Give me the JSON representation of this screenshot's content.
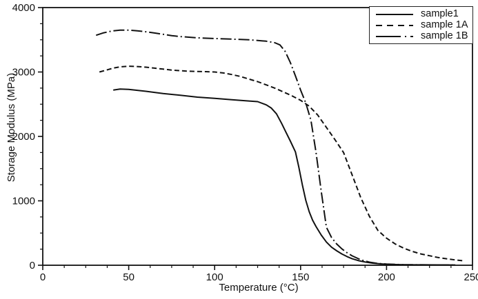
{
  "figure": {
    "background": "#ffffff",
    "line_color": "#111111"
  },
  "chart_data": {
    "type": "line",
    "title": "",
    "xlabel": "Temperature (°C)",
    "ylabel": "Storage Modulus (MPa)",
    "xlim": [
      0,
      250
    ],
    "ylim": [
      0,
      4000
    ],
    "x_major_ticks": [
      0,
      50,
      100,
      150,
      200,
      250
    ],
    "x_minor_step": 12.5,
    "y_major_ticks": [
      0,
      1000,
      2000,
      3000,
      4000
    ],
    "y_minor_step": 250,
    "grid": false,
    "frame": true,
    "legend_position": "top-right",
    "series": [
      {
        "name": "sample1",
        "line_style": "solid",
        "color": "#111111",
        "x": [
          41,
          45,
          50,
          55,
          60,
          70,
          80,
          90,
          100,
          110,
          120,
          125,
          130,
          133,
          136,
          139,
          141,
          144,
          147,
          149,
          151,
          153,
          155,
          157,
          159,
          162,
          165,
          168,
          171,
          174,
          177,
          180,
          184,
          188,
          192,
          196,
          200,
          210,
          220,
          230,
          240
        ],
        "y": [
          2720,
          2735,
          2730,
          2715,
          2700,
          2665,
          2640,
          2610,
          2590,
          2570,
          2550,
          2540,
          2490,
          2440,
          2350,
          2200,
          2090,
          1930,
          1760,
          1520,
          1250,
          1010,
          830,
          700,
          600,
          470,
          360,
          280,
          225,
          175,
          135,
          100,
          70,
          48,
          32,
          22,
          15,
          8,
          6,
          5,
          4
        ]
      },
      {
        "name": "sample 1A",
        "line_style": "dashed",
        "color": "#111111",
        "x": [
          33,
          37,
          41,
          45,
          50,
          55,
          60,
          65,
          70,
          75,
          80,
          85,
          90,
          95,
          100,
          105,
          110,
          115,
          120,
          125,
          130,
          135,
          140,
          145,
          150,
          155,
          160,
          165,
          170,
          175,
          180,
          185,
          190,
          195,
          200,
          205,
          210,
          215,
          220,
          225,
          230,
          235,
          240,
          245
        ],
        "y": [
          3000,
          3030,
          3060,
          3080,
          3090,
          3085,
          3075,
          3060,
          3045,
          3030,
          3020,
          3012,
          3008,
          3005,
          3000,
          2985,
          2960,
          2930,
          2890,
          2850,
          2800,
          2750,
          2690,
          2630,
          2560,
          2470,
          2330,
          2140,
          1950,
          1750,
          1400,
          1050,
          760,
          540,
          420,
          330,
          265,
          215,
          175,
          148,
          120,
          100,
          82,
          68
        ]
      },
      {
        "name": "sample 1B",
        "line_style": "dash-dot",
        "color": "#111111",
        "x": [
          31,
          35,
          40,
          45,
          50,
          55,
          60,
          65,
          70,
          75,
          80,
          90,
          100,
          110,
          120,
          125,
          130,
          135,
          138,
          141,
          144,
          147,
          150,
          153,
          156,
          159,
          162,
          165,
          168,
          171,
          174,
          177,
          180,
          185,
          190,
          195,
          200,
          210,
          220,
          230,
          240
        ],
        "y": [
          3570,
          3605,
          3635,
          3650,
          3650,
          3640,
          3625,
          3605,
          3585,
          3565,
          3550,
          3530,
          3520,
          3510,
          3500,
          3490,
          3478,
          3455,
          3420,
          3320,
          3150,
          2940,
          2720,
          2520,
          2250,
          1750,
          1150,
          590,
          430,
          330,
          255,
          195,
          145,
          85,
          48,
          28,
          18,
          9,
          6,
          5,
          4
        ]
      }
    ]
  }
}
